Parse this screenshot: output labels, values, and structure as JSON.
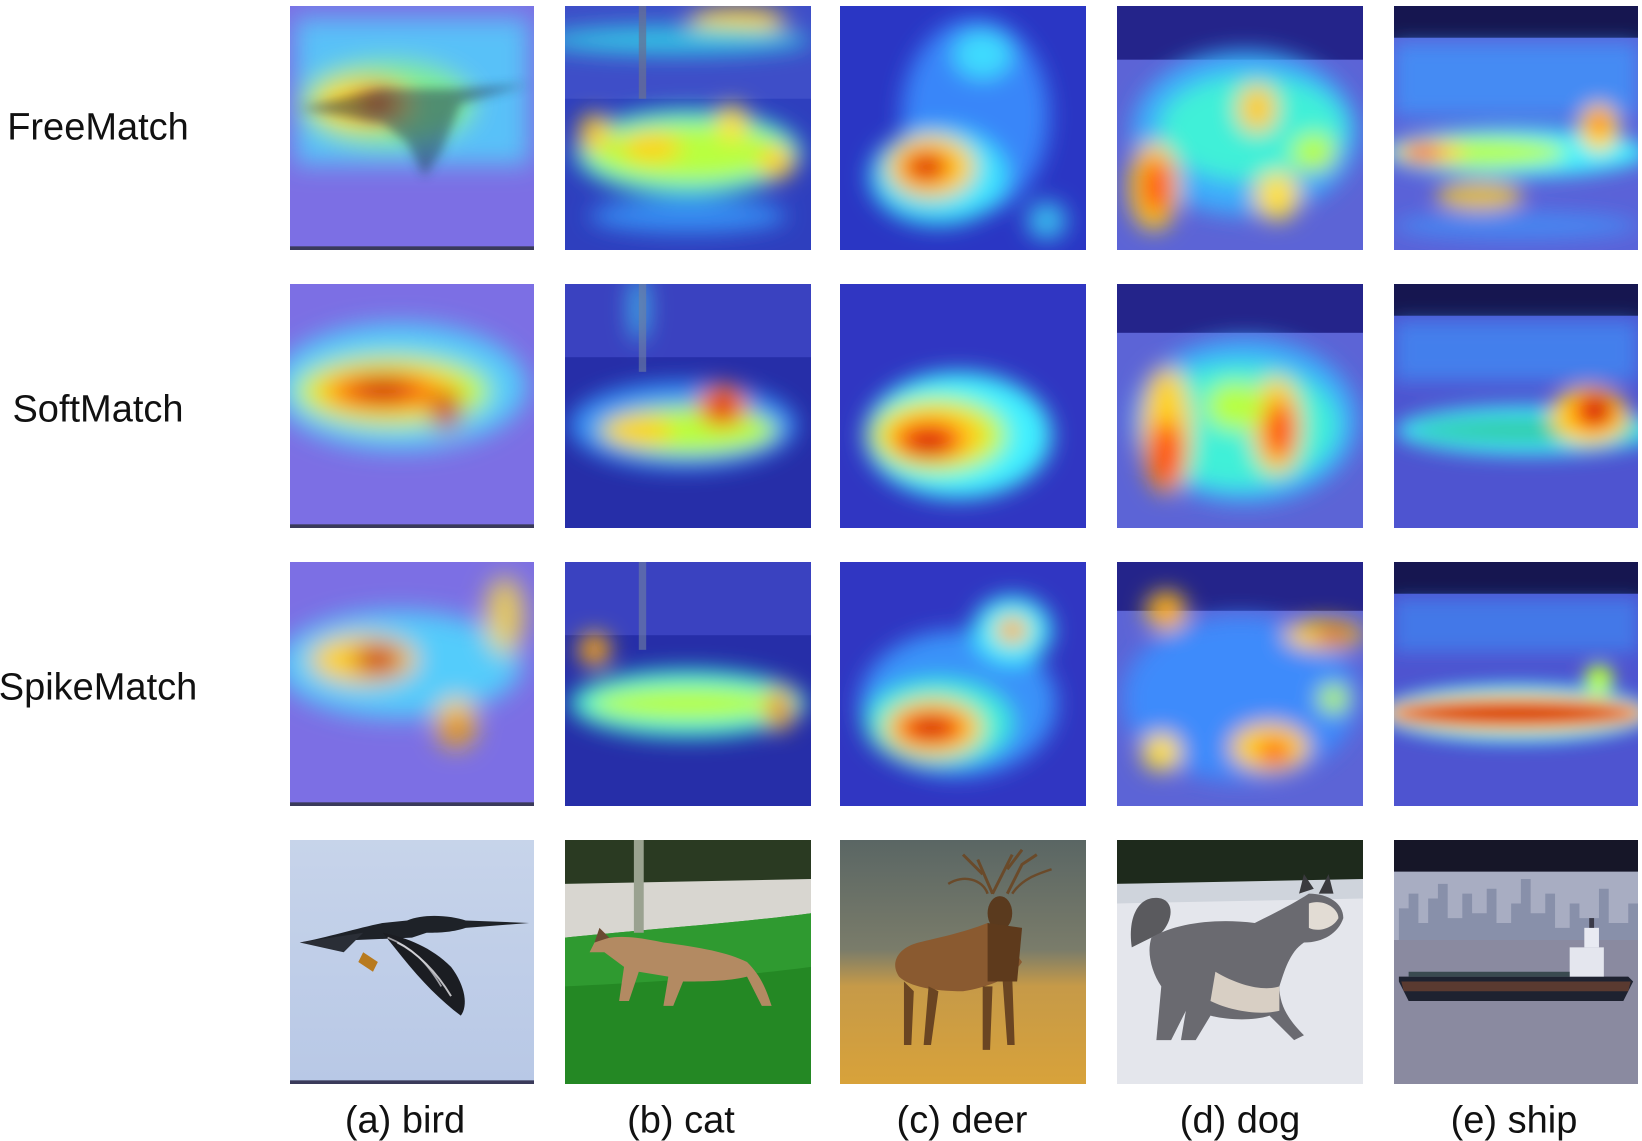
{
  "row_labels": [
    "FreeMatch",
    "SoftMatch",
    "SpikeMatch"
  ],
  "column_labels": [
    "(a) bird",
    "(b) cat",
    "(c) deer",
    "(d) dog",
    "(e) ship"
  ],
  "column_subjects": [
    "bird",
    "cat",
    "deer",
    "dog",
    "ship"
  ],
  "heatmap_colormap": [
    "#2b2bd0",
    "#3aa0ff",
    "#3ff0ff",
    "#b8ff40",
    "#ffe020",
    "#ff6a10",
    "#c80a0a"
  ]
}
